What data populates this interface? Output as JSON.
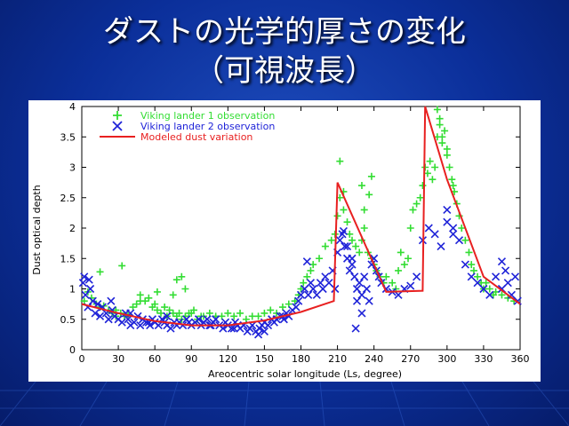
{
  "slide": {
    "title_line1": "ダストの光学的厚さの変化",
    "title_line2": "（可視波長）"
  },
  "colors": {
    "background": "#0b2f9a",
    "lander1": "#33dd33",
    "lander2": "#1f23d8",
    "model": "#e82020"
  },
  "chart_data": {
    "type": "scatter",
    "xlabel": "Areocentric solar longitude (Ls, degree)",
    "ylabel": "Dust optical depth",
    "xlim": [
      0,
      360
    ],
    "ylim": [
      0,
      4
    ],
    "xticks": [
      0,
      30,
      60,
      90,
      120,
      150,
      180,
      210,
      240,
      270,
      300,
      330,
      360
    ],
    "yticks": [
      0,
      0.5,
      1,
      1.5,
      2,
      2.5,
      3,
      3.5,
      4
    ],
    "xtick_labels": [
      "0",
      "30",
      "60",
      "90",
      "120",
      "150",
      "180",
      "210",
      "240",
      "270",
      "300",
      "330",
      "360"
    ],
    "ytick_labels": [
      "0",
      "0.5",
      "1",
      "1.5",
      "2",
      "2.5",
      "3",
      "3.5",
      "4"
    ],
    "legend": [
      {
        "label": "Viking lander 1 observation",
        "marker": "plus",
        "color": "#33dd33"
      },
      {
        "label": "Viking lander 2 observation",
        "marker": "cross",
        "color": "#1f23d8"
      },
      {
        "label": "Modeled dust variation",
        "marker": "line",
        "color": "#e82020"
      }
    ],
    "series": [
      {
        "name": "Viking lander 1 observation",
        "marker": "plus",
        "x": [
          2,
          5,
          8,
          12,
          15,
          18,
          22,
          25,
          28,
          32,
          35,
          38,
          42,
          45,
          48,
          52,
          55,
          58,
          60,
          62,
          65,
          68,
          70,
          72,
          75,
          78,
          80,
          82,
          85,
          88,
          90,
          92,
          95,
          98,
          100,
          105,
          110,
          115,
          120,
          125,
          130,
          135,
          140,
          145,
          150,
          155,
          160,
          165,
          170,
          175,
          178,
          180,
          182,
          185,
          188,
          190,
          195,
          200,
          205,
          208,
          210,
          212,
          215,
          218,
          220,
          222,
          225,
          228,
          230,
          232,
          235,
          238,
          240,
          242,
          245,
          248,
          250,
          255,
          258,
          260,
          262,
          265,
          268,
          270,
          272,
          275,
          278,
          280,
          282,
          284,
          286,
          288,
          290,
          292,
          294,
          296,
          298,
          300,
          302,
          304,
          306,
          308,
          310,
          312,
          315,
          318,
          320,
          322,
          325,
          328,
          330,
          332,
          335,
          338,
          340,
          345,
          350,
          355,
          15,
          33,
          48,
          75,
          78,
          82,
          85,
          212,
          215,
          230,
          232,
          236,
          238,
          292,
          294,
          296,
          300,
          305,
          28,
          62
        ],
        "y": [
          0.8,
          0.95,
          0.85,
          0.75,
          0.7,
          0.72,
          0.65,
          0.6,
          0.65,
          0.6,
          0.55,
          0.58,
          0.7,
          0.75,
          0.8,
          0.8,
          0.85,
          0.7,
          0.75,
          0.65,
          0.6,
          0.7,
          0.55,
          0.65,
          0.6,
          0.55,
          0.6,
          0.5,
          0.55,
          0.6,
          0.6,
          0.65,
          0.5,
          0.55,
          0.55,
          0.6,
          0.55,
          0.55,
          0.6,
          0.55,
          0.6,
          0.5,
          0.55,
          0.55,
          0.6,
          0.65,
          0.6,
          0.7,
          0.75,
          0.8,
          0.9,
          1.0,
          1.1,
          1.2,
          1.3,
          1.4,
          1.5,
          1.7,
          1.8,
          1.9,
          2.2,
          2.5,
          2.3,
          2.1,
          1.9,
          1.8,
          1.7,
          1.6,
          1.8,
          2.0,
          1.6,
          1.5,
          1.4,
          1.3,
          1.2,
          1.1,
          1.2,
          1.1,
          1.0,
          1.3,
          1.6,
          1.4,
          1.5,
          2.0,
          2.3,
          2.4,
          2.5,
          2.7,
          3.0,
          2.9,
          3.1,
          2.8,
          3.0,
          3.5,
          3.8,
          3.4,
          3.6,
          3.2,
          3.0,
          2.8,
          2.6,
          2.4,
          2.2,
          2.0,
          1.8,
          1.6,
          1.4,
          1.3,
          1.2,
          1.1,
          1.0,
          1.1,
          1.0,
          0.9,
          0.95,
          0.9,
          0.85,
          0.8,
          1.28,
          1.38,
          0.9,
          0.9,
          1.15,
          1.2,
          1.0,
          3.1,
          2.6,
          2.7,
          2.3,
          2.55,
          2.85,
          3.95,
          3.7,
          3.5,
          3.3,
          2.7,
          0.55,
          0.95
        ]
      },
      {
        "name": "Viking lander 2 observation",
        "marker": "cross",
        "x": [
          1,
          3,
          5,
          7,
          9,
          11,
          13,
          15,
          17,
          20,
          22,
          25,
          27,
          30,
          33,
          36,
          38,
          40,
          43,
          46,
          48,
          50,
          53,
          56,
          58,
          60,
          63,
          66,
          68,
          70,
          73,
          76,
          78,
          80,
          83,
          86,
          88,
          90,
          93,
          96,
          98,
          100,
          103,
          106,
          108,
          110,
          113,
          116,
          118,
          120,
          123,
          126,
          128,
          130,
          133,
          136,
          138,
          140,
          143,
          146,
          148,
          150,
          153,
          156,
          158,
          160,
          163,
          166,
          168,
          170,
          173,
          176,
          178,
          180,
          183,
          186,
          188,
          190,
          193,
          196,
          198,
          200,
          203,
          206,
          208,
          210,
          212,
          214,
          216,
          218,
          220,
          222,
          224,
          226,
          228,
          230,
          232,
          234,
          236,
          238,
          240,
          242,
          244,
          246,
          250,
          255,
          260,
          265,
          270,
          275,
          280,
          285,
          290,
          295,
          300,
          305,
          310,
          315,
          320,
          325,
          330,
          335,
          340,
          345,
          348,
          350,
          353,
          356,
          358,
          2,
          6,
          24,
          40,
          55,
          70,
          105,
          125,
          145,
          150,
          165,
          185,
          215,
          218,
          222,
          226,
          230,
          300,
          305,
          345,
          225
        ],
        "y": [
          1.1,
          0.9,
          0.7,
          1.0,
          0.8,
          0.6,
          0.75,
          0.55,
          0.7,
          0.6,
          0.5,
          0.65,
          0.55,
          0.5,
          0.45,
          0.6,
          0.5,
          0.4,
          0.45,
          0.55,
          0.4,
          0.5,
          0.45,
          0.4,
          0.5,
          0.45,
          0.4,
          0.5,
          0.45,
          0.4,
          0.35,
          0.45,
          0.4,
          0.45,
          0.4,
          0.5,
          0.45,
          0.4,
          0.45,
          0.5,
          0.4,
          0.45,
          0.5,
          0.4,
          0.45,
          0.5,
          0.4,
          0.35,
          0.45,
          0.4,
          0.35,
          0.45,
          0.4,
          0.35,
          0.4,
          0.3,
          0.35,
          0.4,
          0.3,
          0.35,
          0.4,
          0.45,
          0.4,
          0.5,
          0.45,
          0.5,
          0.55,
          0.5,
          0.6,
          0.55,
          0.65,
          0.7,
          0.8,
          0.9,
          1.0,
          0.9,
          1.1,
          1.0,
          0.9,
          1.1,
          1.0,
          1.2,
          1.1,
          1.3,
          1.0,
          1.6,
          1.8,
          1.9,
          1.7,
          1.5,
          1.3,
          1.4,
          1.2,
          1.0,
          1.1,
          0.9,
          1.2,
          1.0,
          0.8,
          1.4,
          1.5,
          1.3,
          1.2,
          1.1,
          1.0,
          0.95,
          0.9,
          1.0,
          1.05,
          1.2,
          1.8,
          2.0,
          1.9,
          1.7,
          2.1,
          2.0,
          1.8,
          1.4,
          1.2,
          1.1,
          1.0,
          0.9,
          1.2,
          1.0,
          1.3,
          1.1,
          0.9,
          1.2,
          0.8,
          1.2,
          1.15,
          0.8,
          0.6,
          0.45,
          0.55,
          0.4,
          0.35,
          0.25,
          0.3,
          0.55,
          1.45,
          1.95,
          1.7,
          1.5,
          0.8,
          0.6,
          2.3,
          1.9,
          1.45,
          0.35
        ]
      },
      {
        "name": "Modeled dust variation",
        "marker": "line",
        "x": [
          0,
          30,
          60,
          90,
          120,
          150,
          180,
          207,
          210,
          250,
          280,
          282,
          300,
          330,
          360
        ],
        "y": [
          0.75,
          0.6,
          0.47,
          0.4,
          0.4,
          0.48,
          0.62,
          0.8,
          2.75,
          0.95,
          0.97,
          4.0,
          2.8,
          1.2,
          0.75
        ]
      }
    ]
  }
}
